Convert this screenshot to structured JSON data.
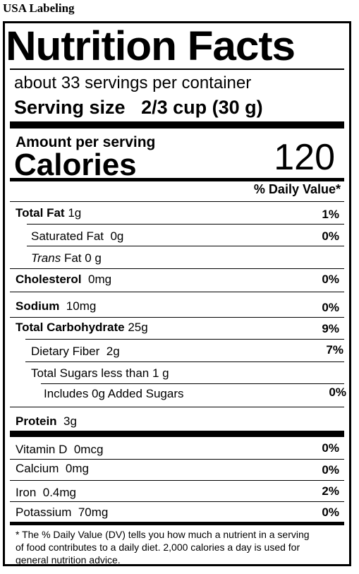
{
  "caption": "USA Labeling",
  "label": {
    "title": "Nutrition Facts",
    "servings_per_container": "about 33 servings per container",
    "serving_size_label": "Serving size",
    "serving_size_value": "2/3 cup (30 g)",
    "amount_per_serving": "Amount per serving",
    "calories_label": "Calories",
    "calories_value": "120",
    "dv_header": "% Daily Value*",
    "nutrients": [
      {
        "name": "Total Fat",
        "amount": "1g",
        "dv": "1%"
      },
      {
        "name": "Saturated Fat",
        "amount": "0g",
        "dv": "0%"
      },
      {
        "name_prefix": "Trans",
        "name": "Fat",
        "amount": "0 g",
        "dv": ""
      },
      {
        "name": "Cholesterol",
        "amount": "0mg",
        "dv": "0%"
      },
      {
        "name": "Sodium",
        "amount": "10mg",
        "dv": "0%"
      },
      {
        "name": "Total Carbohydrate",
        "amount": "25g",
        "dv": "9%"
      },
      {
        "name": "Dietary Fiber",
        "amount": "2g",
        "dv": "7%"
      },
      {
        "name": "Total Sugars less than",
        "amount": "1 g",
        "dv": ""
      },
      {
        "name": "Includes 0g  Added Sugars",
        "amount": "",
        "dv": "0%"
      },
      {
        "name": "Protein",
        "amount": "3g",
        "dv": ""
      }
    ],
    "vitamins": [
      {
        "name": "Vitamin D",
        "amount": "0mcg",
        "dv": "0%"
      },
      {
        "name": "Calcium",
        "amount": "0mg",
        "dv": "0%"
      },
      {
        "name": "Iron",
        "amount": "0.4mg",
        "dv": "2%"
      },
      {
        "name": "Potassium",
        "amount": "70mg",
        "dv": "0%"
      }
    ],
    "footnote": "* The % Daily Value (DV) tells you how much a nutrient in a serving of food contributes to a daily diet. 2,000 calories a day is used for general nutrition advice."
  }
}
